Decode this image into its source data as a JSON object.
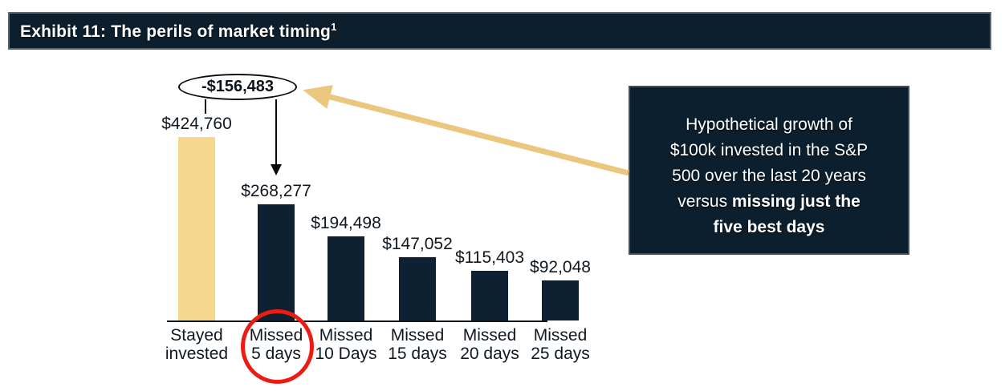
{
  "header": {
    "title": "Exhibit 11: The perils of market timing",
    "superscript": "1"
  },
  "callout_oval": {
    "label": "-$156,483"
  },
  "annotation_box": {
    "lines": [
      {
        "segments": [
          {
            "text": "Hypothetical growth of",
            "bold": false
          }
        ]
      },
      {
        "segments": [
          {
            "text": "$100k invested in the S&P",
            "bold": false
          }
        ]
      },
      {
        "segments": [
          {
            "text": "500 over the last 20 years",
            "bold": false
          }
        ]
      },
      {
        "segments": [
          {
            "text": "versus ",
            "bold": false
          },
          {
            "text": "missing just the",
            "bold": true
          }
        ]
      },
      {
        "segments": [
          {
            "text": "five best days",
            "bold": true
          }
        ]
      }
    ]
  },
  "chart_data": {
    "type": "bar",
    "categories": [
      "Stayed invested",
      "Missed 5 days",
      "Missed 10 Days",
      "Missed 15 days",
      "Missed 20 days",
      "Missed 25 days"
    ],
    "category_lines": [
      [
        "Stayed",
        "invested"
      ],
      [
        "Missed",
        "5 days"
      ],
      [
        "Missed",
        "10 Days"
      ],
      [
        "Missed",
        "15 days"
      ],
      [
        "Missed",
        "20 days"
      ],
      [
        "Missed",
        "25 days"
      ]
    ],
    "values": [
      424760,
      268277,
      194498,
      147052,
      115403,
      92048
    ],
    "value_labels": [
      "$424,760",
      "$268,277",
      "$194,498",
      "$147,052",
      "$115,403",
      "$92,048"
    ],
    "difference_annotation": "-$156,483",
    "highlight_index": 0,
    "circled_category_index": 1,
    "title": "Exhibit 11: The perils of market timing",
    "xlabel": "",
    "ylabel": "",
    "ylim": [
      0,
      440000
    ],
    "grid": false,
    "legend": "none"
  },
  "colors": {
    "bar_highlight": "#f5d88e",
    "bar_default": "#0e2132",
    "panel_navy": "#0c1f2e",
    "annotation_arrow": "#eac77c",
    "highlight_circle_red": "#ee1b15",
    "text_dark": "#101820",
    "text_white": "#ffffff"
  }
}
